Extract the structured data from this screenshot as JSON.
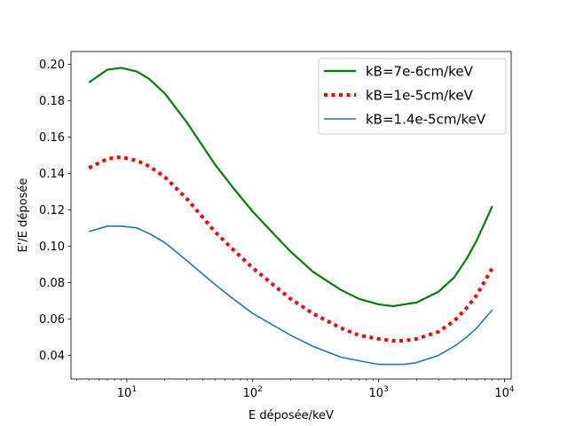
{
  "chart_data": {
    "type": "line",
    "title": "",
    "xlabel": "E déposée/keV",
    "ylabel": "E'/E déposée",
    "xscale": "log",
    "xlim": [
      3.6,
      11300
    ],
    "ylim": [
      0.027,
      0.207
    ],
    "grid": false,
    "legend_position": "top-right",
    "x_ticks": [
      {
        "value": 10,
        "base": "10",
        "exp": "1"
      },
      {
        "value": 100,
        "base": "10",
        "exp": "2"
      },
      {
        "value": 1000,
        "base": "10",
        "exp": "3"
      },
      {
        "value": 10000,
        "base": "10",
        "exp": "4"
      }
    ],
    "y_ticks": [
      {
        "value": 0.04,
        "label": "0.04"
      },
      {
        "value": 0.06,
        "label": "0.06"
      },
      {
        "value": 0.08,
        "label": "0.08"
      },
      {
        "value": 0.1,
        "label": "0.10"
      },
      {
        "value": 0.12,
        "label": "0.12"
      },
      {
        "value": 0.14,
        "label": "0.14"
      },
      {
        "value": 0.16,
        "label": "0.16"
      },
      {
        "value": 0.18,
        "label": "0.18"
      },
      {
        "value": 0.2,
        "label": "0.20"
      }
    ],
    "x": [
      5,
      7,
      9,
      12,
      15,
      20,
      30,
      50,
      70,
      100,
      150,
      200,
      300,
      500,
      700,
      1000,
      1300,
      1600,
      2000,
      3000,
      4000,
      5000,
      6000,
      8000
    ],
    "series": [
      {
        "name": "kB=7e-6cm/keV",
        "color": "#008000",
        "style": "solid",
        "values": [
          0.19,
          0.197,
          0.198,
          0.196,
          0.192,
          0.184,
          0.168,
          0.145,
          0.132,
          0.119,
          0.106,
          0.097,
          0.086,
          0.076,
          0.071,
          0.068,
          0.067,
          0.068,
          0.069,
          0.075,
          0.083,
          0.093,
          0.103,
          0.122
        ]
      },
      {
        "name": "kB=1e-5cm/keV",
        "color": "#ff0000",
        "style": "dotted",
        "values": [
          0.143,
          0.148,
          0.149,
          0.147,
          0.144,
          0.138,
          0.126,
          0.108,
          0.098,
          0.088,
          0.078,
          0.071,
          0.063,
          0.055,
          0.051,
          0.049,
          0.048,
          0.048,
          0.049,
          0.053,
          0.059,
          0.066,
          0.073,
          0.088
        ]
      },
      {
        "name": "kB=1.4e-5cm/keV",
        "color": "#1f77b4",
        "style": "solid",
        "values": [
          0.108,
          0.111,
          0.111,
          0.11,
          0.107,
          0.102,
          0.092,
          0.079,
          0.071,
          0.063,
          0.056,
          0.051,
          0.045,
          0.039,
          0.037,
          0.035,
          0.035,
          0.035,
          0.036,
          0.04,
          0.045,
          0.05,
          0.055,
          0.065
        ]
      }
    ]
  }
}
